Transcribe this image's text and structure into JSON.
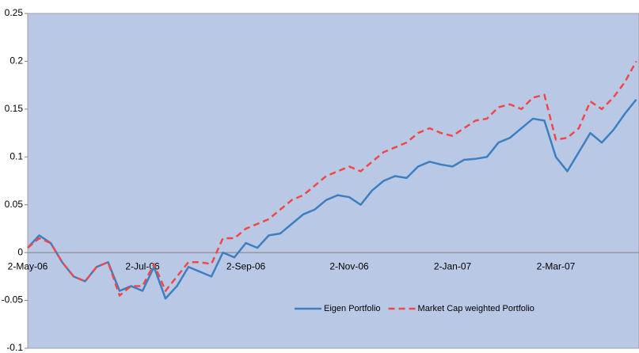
{
  "chart_data": {
    "type": "line",
    "categories": [
      "2-May-06",
      null,
      null,
      null,
      null,
      null,
      null,
      null,
      null,
      null,
      "2-Jul-06",
      null,
      null,
      null,
      null,
      null,
      null,
      null,
      null,
      "2-Sep-06",
      null,
      null,
      null,
      null,
      null,
      null,
      null,
      null,
      "2-Nov-06",
      null,
      null,
      null,
      null,
      null,
      null,
      null,
      null,
      "2-Jan-07",
      null,
      null,
      null,
      null,
      null,
      null,
      null,
      null,
      "2-Mar-07",
      null,
      null,
      null,
      null,
      null,
      null,
      null
    ],
    "series": [
      {
        "name": "Eigen Portfolio",
        "color": "#3d7fc1",
        "dash": false,
        "values": [
          0.005,
          0.018,
          0.01,
          -0.01,
          -0.025,
          -0.03,
          -0.015,
          -0.01,
          -0.04,
          -0.035,
          -0.04,
          -0.015,
          -0.048,
          -0.035,
          -0.015,
          -0.02,
          -0.025,
          0.0,
          -0.005,
          0.01,
          0.005,
          0.018,
          0.02,
          0.03,
          0.04,
          0.045,
          0.055,
          0.06,
          0.058,
          0.05,
          0.065,
          0.075,
          0.08,
          0.078,
          0.09,
          0.095,
          0.092,
          0.09,
          0.097,
          0.098,
          0.1,
          0.115,
          0.12,
          0.13,
          0.14,
          0.138,
          0.1,
          0.085,
          0.105,
          0.125,
          0.115,
          0.128,
          0.145,
          0.16
        ]
      },
      {
        "name": "Market Cap weighted Portfolio",
        "color": "#f04848",
        "dash": true,
        "values": [
          0.005,
          0.015,
          0.01,
          -0.01,
          -0.025,
          -0.03,
          -0.015,
          -0.01,
          -0.045,
          -0.035,
          -0.035,
          -0.012,
          -0.04,
          -0.025,
          -0.01,
          -0.01,
          -0.012,
          0.015,
          0.015,
          0.025,
          0.03,
          0.035,
          0.045,
          0.055,
          0.06,
          0.07,
          0.08,
          0.085,
          0.09,
          0.085,
          0.095,
          0.105,
          0.11,
          0.115,
          0.125,
          0.13,
          0.125,
          0.122,
          0.13,
          0.138,
          0.14,
          0.152,
          0.155,
          0.15,
          0.162,
          0.165,
          0.118,
          0.12,
          0.13,
          0.158,
          0.15,
          0.162,
          0.178,
          0.2
        ]
      }
    ],
    "ylim": [
      -0.1,
      0.25
    ],
    "yticks": [
      -0.1,
      -0.05,
      0,
      0.05,
      0.1,
      0.15,
      0.2,
      0.25
    ],
    "plot_background": "#b9c9e5",
    "grid": false,
    "legend": "bottom-right"
  }
}
